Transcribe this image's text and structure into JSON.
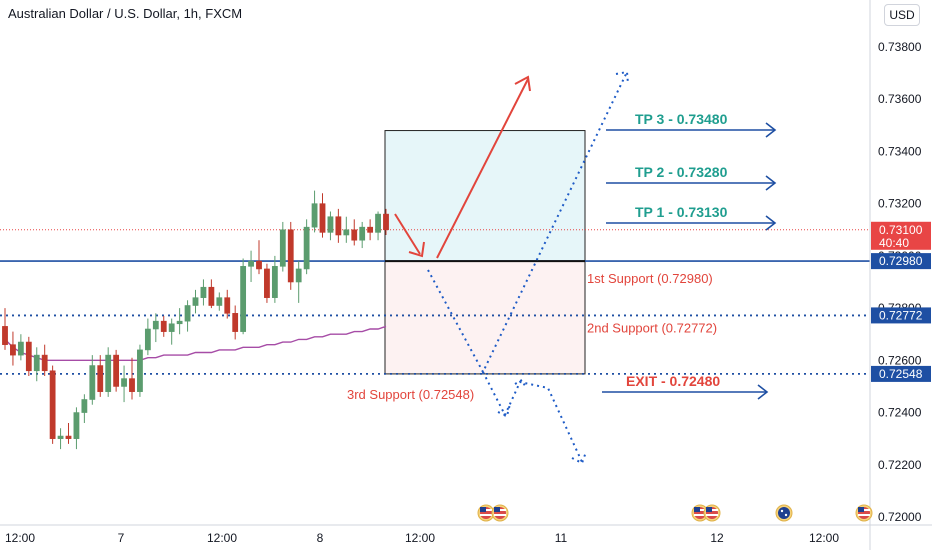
{
  "header": {
    "title": "Australian Dollar / U.S. Dollar, 1h, FXCM",
    "currency": "USD"
  },
  "colors": {
    "up": "#5b9c6e",
    "down": "#c0392b",
    "ma": "#a64ca6",
    "level": "#1e4fa3",
    "tp_text": "#1f9e8f",
    "support_text": "#e2453c",
    "arrow_red": "#e2453c",
    "dotted_blue": "#1e5bc6",
    "box_top": "#e6f6f9",
    "box_bottom": "#fdf2f2",
    "price_tag_red": "#e84545",
    "price_tag_blue": "#1e4fa3"
  },
  "chart_data": {
    "type": "candlestick",
    "ylim": [
      0.7198,
      0.7392
    ],
    "x_ticks": [
      "12:00",
      "7",
      "12:00",
      "8",
      "12:00",
      "11",
      "12",
      "12:00"
    ],
    "y_ticks": [
      "0.73800",
      "0.73600",
      "0.73400",
      "0.73200",
      "0.73000",
      "0.72800",
      "0.72600",
      "0.72400",
      "0.72200",
      "0.72000"
    ],
    "y_tick_values": [
      0.738,
      0.736,
      0.734,
      0.732,
      0.73,
      0.728,
      0.726,
      0.724,
      0.722,
      0.72
    ],
    "candles": [
      {
        "o": 0.7273,
        "h": 0.728,
        "l": 0.7264,
        "c": 0.7266
      },
      {
        "o": 0.7266,
        "h": 0.7271,
        "l": 0.7258,
        "c": 0.7262
      },
      {
        "o": 0.7262,
        "h": 0.727,
        "l": 0.726,
        "c": 0.7267
      },
      {
        "o": 0.7267,
        "h": 0.7269,
        "l": 0.7254,
        "c": 0.7256
      },
      {
        "o": 0.7256,
        "h": 0.7265,
        "l": 0.7252,
        "c": 0.7262
      },
      {
        "o": 0.7262,
        "h": 0.7266,
        "l": 0.7254,
        "c": 0.7256
      },
      {
        "o": 0.7256,
        "h": 0.7258,
        "l": 0.7228,
        "c": 0.723
      },
      {
        "o": 0.723,
        "h": 0.7234,
        "l": 0.7226,
        "c": 0.7231
      },
      {
        "o": 0.7231,
        "h": 0.7236,
        "l": 0.7228,
        "c": 0.723
      },
      {
        "o": 0.723,
        "h": 0.7242,
        "l": 0.7226,
        "c": 0.724
      },
      {
        "o": 0.724,
        "h": 0.7247,
        "l": 0.7236,
        "c": 0.7245
      },
      {
        "o": 0.7245,
        "h": 0.7262,
        "l": 0.7243,
        "c": 0.7258
      },
      {
        "o": 0.7258,
        "h": 0.7262,
        "l": 0.7246,
        "c": 0.7248
      },
      {
        "o": 0.7248,
        "h": 0.7265,
        "l": 0.7246,
        "c": 0.7262
      },
      {
        "o": 0.7262,
        "h": 0.7264,
        "l": 0.7248,
        "c": 0.725
      },
      {
        "o": 0.725,
        "h": 0.7258,
        "l": 0.7244,
        "c": 0.7253
      },
      {
        "o": 0.7253,
        "h": 0.7261,
        "l": 0.7245,
        "c": 0.7248
      },
      {
        "o": 0.7248,
        "h": 0.7266,
        "l": 0.7246,
        "c": 0.7264
      },
      {
        "o": 0.7264,
        "h": 0.7276,
        "l": 0.7262,
        "c": 0.7272
      },
      {
        "o": 0.7272,
        "h": 0.7278,
        "l": 0.7267,
        "c": 0.7275
      },
      {
        "o": 0.7275,
        "h": 0.7277,
        "l": 0.7269,
        "c": 0.7271
      },
      {
        "o": 0.7271,
        "h": 0.7276,
        "l": 0.7266,
        "c": 0.7274
      },
      {
        "o": 0.7274,
        "h": 0.728,
        "l": 0.727,
        "c": 0.7275
      },
      {
        "o": 0.7275,
        "h": 0.7283,
        "l": 0.7271,
        "c": 0.7281
      },
      {
        "o": 0.7281,
        "h": 0.7287,
        "l": 0.7278,
        "c": 0.7284
      },
      {
        "o": 0.7284,
        "h": 0.7291,
        "l": 0.7281,
        "c": 0.7288
      },
      {
        "o": 0.7288,
        "h": 0.7291,
        "l": 0.728,
        "c": 0.7281
      },
      {
        "o": 0.7281,
        "h": 0.7286,
        "l": 0.7279,
        "c": 0.7284
      },
      {
        "o": 0.7284,
        "h": 0.7287,
        "l": 0.7276,
        "c": 0.7278
      },
      {
        "o": 0.7278,
        "h": 0.7281,
        "l": 0.7268,
        "c": 0.7271
      },
      {
        "o": 0.7271,
        "h": 0.7299,
        "l": 0.727,
        "c": 0.7296
      },
      {
        "o": 0.7296,
        "h": 0.7302,
        "l": 0.729,
        "c": 0.7298
      },
      {
        "o": 0.7298,
        "h": 0.7306,
        "l": 0.7293,
        "c": 0.7295
      },
      {
        "o": 0.7295,
        "h": 0.7297,
        "l": 0.7282,
        "c": 0.7284
      },
      {
        "o": 0.7284,
        "h": 0.73,
        "l": 0.7282,
        "c": 0.7296
      },
      {
        "o": 0.7296,
        "h": 0.7313,
        "l": 0.7294,
        "c": 0.731
      },
      {
        "o": 0.731,
        "h": 0.7313,
        "l": 0.7287,
        "c": 0.729
      },
      {
        "o": 0.729,
        "h": 0.7298,
        "l": 0.7282,
        "c": 0.7295
      },
      {
        "o": 0.7295,
        "h": 0.7314,
        "l": 0.7293,
        "c": 0.7311
      },
      {
        "o": 0.7311,
        "h": 0.7325,
        "l": 0.7309,
        "c": 0.732
      },
      {
        "o": 0.732,
        "h": 0.7324,
        "l": 0.7307,
        "c": 0.7309
      },
      {
        "o": 0.7309,
        "h": 0.7317,
        "l": 0.7306,
        "c": 0.7315
      },
      {
        "o": 0.7315,
        "h": 0.7318,
        "l": 0.7305,
        "c": 0.7308
      },
      {
        "o": 0.7308,
        "h": 0.7315,
        "l": 0.7305,
        "c": 0.731
      },
      {
        "o": 0.731,
        "h": 0.7314,
        "l": 0.7304,
        "c": 0.7306
      },
      {
        "o": 0.7306,
        "h": 0.7313,
        "l": 0.7303,
        "c": 0.7311
      },
      {
        "o": 0.7311,
        "h": 0.7314,
        "l": 0.7306,
        "c": 0.7309
      },
      {
        "o": 0.7309,
        "h": 0.7317,
        "l": 0.7306,
        "c": 0.7316
      },
      {
        "o": 0.7316,
        "h": 0.7318,
        "l": 0.7308,
        "c": 0.731
      }
    ],
    "moving_average": [
      0.7268,
      0.7265,
      0.7263,
      0.7262,
      0.7261,
      0.726,
      0.726,
      0.726,
      0.726,
      0.726,
      0.726,
      0.726,
      0.726,
      0.726,
      0.726,
      0.726,
      0.726,
      0.726,
      0.7261,
      0.7261,
      0.7262,
      0.7262,
      0.7262,
      0.7262,
      0.7263,
      0.7263,
      0.7263,
      0.7264,
      0.7264,
      0.7264,
      0.7265,
      0.7265,
      0.7265,
      0.7266,
      0.7266,
      0.7267,
      0.7267,
      0.7268,
      0.7268,
      0.7269,
      0.7269,
      0.727,
      0.727,
      0.727,
      0.7271,
      0.7271,
      0.7272,
      0.7272,
      0.7273
    ],
    "levels": [
      {
        "name": "1st Support (0.72980)",
        "value": 0.7298,
        "style": "solid"
      },
      {
        "name": "2nd Support (0.72772)",
        "value": 0.72772,
        "style": "dotted"
      },
      {
        "name": "3rd Support (0.72548)",
        "value": 0.72548,
        "style": "dotted"
      }
    ],
    "targets": [
      {
        "label": "TP 3 - 0.73480",
        "value": 0.7348
      },
      {
        "label": "TP 2 - 0.73280",
        "value": 0.7328
      },
      {
        "label": "TP 1 - 0.73130",
        "value": 0.7313
      }
    ],
    "exit": {
      "label": "EXIT - 0.72480",
      "value": 0.7248
    },
    "position_box": {
      "entry": 0.7298,
      "target": 0.7348,
      "stop": 0.72548
    },
    "current_price": {
      "value": "0.73100",
      "countdown": "40:40",
      "level": 0.731
    },
    "price_tags": [
      {
        "value": "0.72980",
        "level": 0.7298
      },
      {
        "value": "0.72772",
        "level": 0.72772
      },
      {
        "value": "0.72548",
        "level": 0.72548
      }
    ]
  }
}
